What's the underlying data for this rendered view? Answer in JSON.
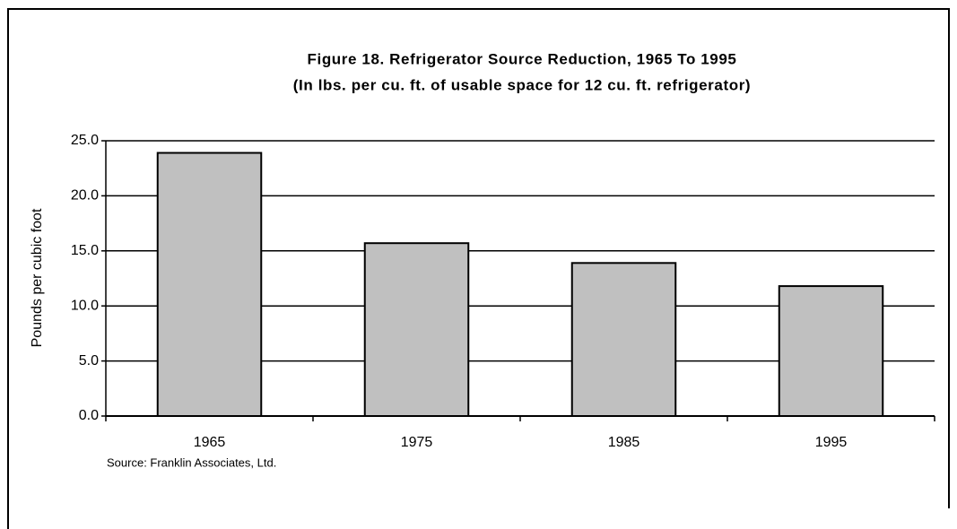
{
  "chart_data": {
    "type": "bar",
    "title": "Figure 18. Refrigerator Source Reduction, 1965 To 1995",
    "subtitle": "(In lbs. per cu. ft. of usable space for 12 cu. ft. refrigerator)",
    "y_label": "Pounds per cubic foot",
    "source": "Source: Franklin Associates, Ltd.",
    "categories": [
      "1965",
      "1975",
      "1985",
      "1995"
    ],
    "values": [
      23.9,
      15.7,
      13.9,
      11.8
    ],
    "color": "#c0c0c0",
    "ylim": [
      0,
      25
    ],
    "yticks": [
      {
        "value": 0,
        "label": "0.0"
      },
      {
        "value": 5,
        "label": "5.0"
      },
      {
        "value": 10,
        "label": "10.0"
      },
      {
        "value": 15,
        "label": "15.0"
      },
      {
        "value": 20,
        "label": "20.0"
      },
      {
        "value": 25,
        "label": "25.0"
      }
    ],
    "grid": true
  }
}
